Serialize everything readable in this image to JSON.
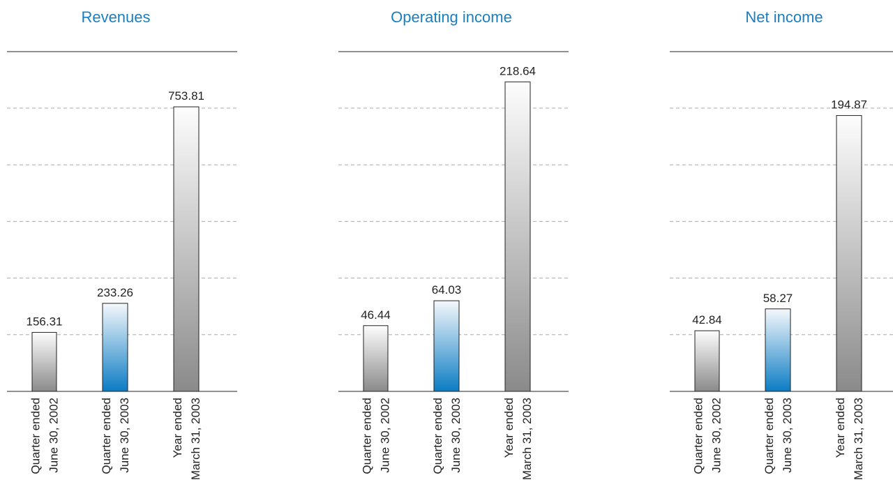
{
  "colors": {
    "title": "#1a7fc1",
    "bar_gray_top": "#fdfdfd",
    "bar_gray_bottom": "#8a8a8a",
    "bar_blue_top": "#f5f8fc",
    "bar_blue_bottom": "#0b7cc3",
    "bar_stroke": "#222222",
    "axis": "#222222",
    "grid": "#aaaaaa"
  },
  "chart_data": [
    {
      "type": "bar",
      "title": "Revenues",
      "categories": [
        [
          "Quarter ended",
          "June 30, 2002"
        ],
        [
          "Quarter ended",
          "June 30, 2003"
        ],
        [
          "Year ended",
          "March 31, 2003"
        ]
      ],
      "values": [
        156.31,
        233.26,
        753.81
      ],
      "value_labels": [
        "156.31",
        "233.26",
        "753.81"
      ],
      "bar_styles": [
        "gray",
        "blue",
        "gray"
      ],
      "xlabel": "",
      "ylabel": "",
      "ylim": [
        0,
        900
      ],
      "grid_step": 150,
      "grid": true
    },
    {
      "type": "bar",
      "title": "Operating income",
      "categories": [
        [
          "Quarter ended",
          "June 30, 2002"
        ],
        [
          "Quarter ended",
          "June 30, 2003"
        ],
        [
          "Year ended",
          "March 31, 2003"
        ]
      ],
      "values": [
        46.44,
        64.03,
        218.64
      ],
      "value_labels": [
        "46.44",
        "64.03",
        "218.64"
      ],
      "bar_styles": [
        "gray",
        "blue",
        "gray"
      ],
      "xlabel": "",
      "ylabel": "",
      "ylim": [
        0,
        240
      ],
      "grid_step": 40,
      "grid": true
    },
    {
      "type": "bar",
      "title": "Net income",
      "categories": [
        [
          "Quarter ended",
          "June 30, 2002"
        ],
        [
          "Quarter ended",
          "June 30, 2003"
        ],
        [
          "Year ended",
          "March 31, 2003"
        ]
      ],
      "values": [
        42.84,
        58.27,
        194.87
      ],
      "value_labels": [
        "42.84",
        "58.27",
        "194.87"
      ],
      "bar_styles": [
        "gray",
        "blue",
        "gray"
      ],
      "xlabel": "",
      "ylabel": "",
      "ylim": [
        0,
        240
      ],
      "grid_step": 40,
      "grid": true
    }
  ]
}
